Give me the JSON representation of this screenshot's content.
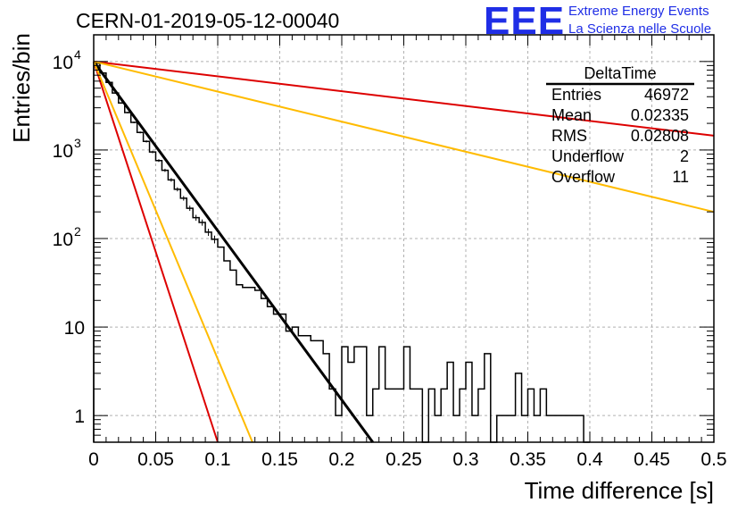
{
  "header": {
    "title": "CERN-01-2019-05-12-00040",
    "logo_text": "EEE",
    "logo_line1": "Extreme Energy Events",
    "logo_line2": "La Scienza nelle Scuole"
  },
  "stats_box": {
    "title": "DeltaTime",
    "rows": [
      {
        "label": "Entries",
        "value": "46972"
      },
      {
        "label": "Mean",
        "value": "0.02335"
      },
      {
        "label": "RMS",
        "value": "0.02808"
      },
      {
        "label": "Underflow",
        "value": "2"
      },
      {
        "label": "Overflow",
        "value": "11"
      }
    ]
  },
  "colors": {
    "histogram": "#000000",
    "fit_black": "#000000",
    "fit_red": "#dd0000",
    "fit_yellow": "#ffbb00",
    "grid": "#b0b0b0",
    "logo": "#1f2ee6"
  },
  "chart_data": {
    "type": "line",
    "title": "CERN-01-2019-05-12-00040",
    "xlabel": "Time difference [s]",
    "ylabel": "Entries/bin",
    "xlim": [
      0,
      0.5
    ],
    "ylim": [
      0.5,
      20000
    ],
    "yscale": "log",
    "grid": true,
    "xticks": [
      0,
      0.05,
      0.1,
      0.15,
      0.2,
      0.25,
      0.3,
      0.35,
      0.4,
      0.45,
      0.5
    ],
    "xtick_labels": [
      "0",
      "0.05",
      "0.1",
      "0.15",
      "0.2",
      "0.25",
      "0.3",
      "0.35",
      "0.4",
      "0.45",
      "0.5"
    ],
    "yticks": [
      1,
      10,
      100,
      1000,
      10000
    ],
    "ytick_labels": [
      "1",
      "10",
      "10^2",
      "10^3",
      "10^4"
    ],
    "histogram": {
      "bin_width": 0.005,
      "counts": [
        9500,
        7400,
        5800,
        4400,
        3400,
        2650,
        2050,
        1580,
        1250,
        950,
        760,
        590,
        460,
        360,
        285,
        220,
        172,
        152,
        118,
        98,
        80,
        56,
        44,
        30,
        28,
        28,
        26,
        21,
        17,
        14,
        14,
        9,
        10,
        8,
        8,
        7,
        7,
        5,
        2,
        1,
        6,
        4,
        6,
        6,
        1,
        2,
        6,
        2,
        2,
        2,
        6,
        2,
        2,
        0.5,
        2,
        1,
        2,
        4,
        1,
        2,
        4,
        1,
        2,
        5,
        0.5,
        1,
        1,
        1,
        3,
        1,
        2,
        1,
        2,
        1,
        1,
        1,
        1,
        1,
        1,
        0.5
      ]
    },
    "lines": [
      {
        "color": "black",
        "x": [
          0,
          0.225
        ],
        "y": [
          10000,
          0.5
        ]
      },
      {
        "color": "red",
        "x": [
          0,
          0.1
        ],
        "y": [
          10000,
          0.5
        ]
      },
      {
        "color": "yellow",
        "x": [
          0,
          0.128
        ],
        "y": [
          10000,
          0.5
        ]
      },
      {
        "color": "red",
        "x": [
          0,
          0.5
        ],
        "y": [
          10000,
          1450
        ]
      },
      {
        "color": "yellow",
        "x": [
          0,
          0.5
        ],
        "y": [
          10000,
          200
        ]
      }
    ]
  }
}
